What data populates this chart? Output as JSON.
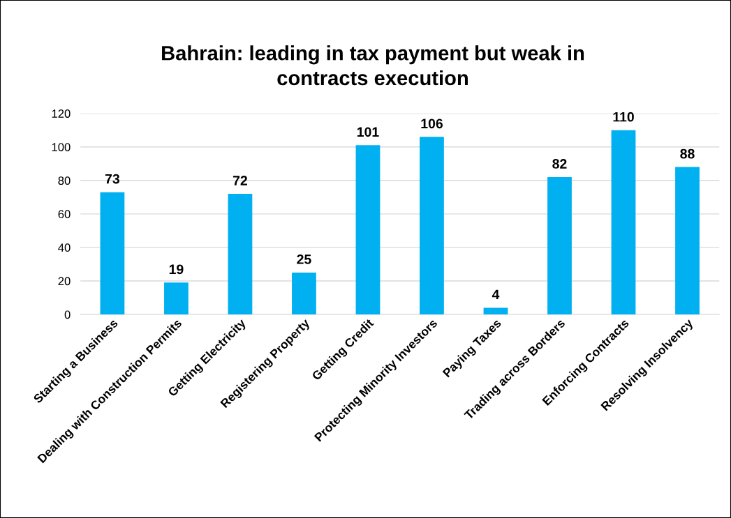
{
  "chart_data": {
    "type": "bar",
    "title": "Bahrain: leading in tax payment but weak in\ncontracts execution",
    "categories": [
      "Starting a Business",
      "Dealing with Construction Permits",
      "Getting Electricity",
      "Registering Property",
      "Getting Credit",
      "Protecting Minority Investors",
      "Paying Taxes",
      "Trading across Borders",
      "Enforcing Contracts",
      "Resolving Insolvency"
    ],
    "values": [
      73,
      19,
      72,
      25,
      101,
      106,
      4,
      82,
      110,
      88
    ],
    "color": "#00b0f0",
    "ylim": [
      0,
      120
    ],
    "yticks": [
      0,
      20,
      40,
      60,
      80,
      100,
      120
    ],
    "grid": "y",
    "data_labels": true
  }
}
